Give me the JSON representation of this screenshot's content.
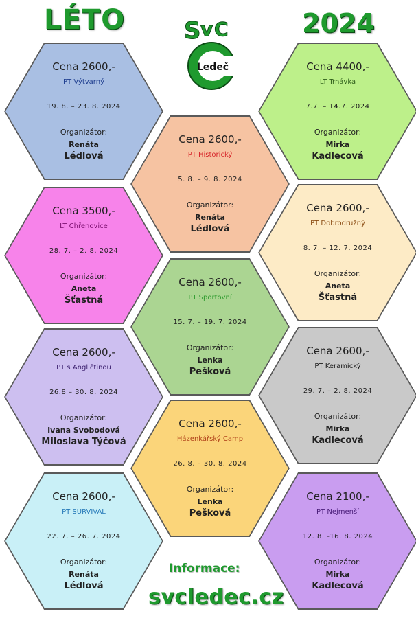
{
  "header": {
    "left": "LÉTO",
    "right": "2024"
  },
  "logo": {
    "letters": "SvC",
    "town": "Ledeč"
  },
  "org_label": "Organizátor:",
  "camps": [
    {
      "price": "Cena 2600,-",
      "name": "PT Výtvarný",
      "dates": "19. 8. – 23. 8. 2024",
      "org1": "Renáta",
      "org2": "Lédlová",
      "fill": "#a9bfe3",
      "nameColor": "#1f3e8f"
    },
    {
      "price": "Cena 4400,-",
      "name": "LT Trnávka",
      "dates": "7.7. – 14.7. 2024",
      "org1": "Mirka",
      "org2": "Kadlecová",
      "fill": "#bdf08a",
      "nameColor": "#2f5e1b"
    },
    {
      "price": "Cena 2600,-",
      "name": "PT Historický",
      "dates": "5. 8. – 9. 8. 2024",
      "org1": "Renáta",
      "org2": "Lédlová",
      "fill": "#f6c3a2",
      "nameColor": "#d7262a"
    },
    {
      "price": "Cena 3500,-",
      "name": "LT Chřenovice",
      "dates": "28. 7. – 2. 8. 2024",
      "org1": "Aneta",
      "org2": "Šťastná",
      "fill": "#f783ea",
      "nameColor": "#7a0e6e"
    },
    {
      "price": "Cena 2600,-",
      "name": "PT Dobrodružný",
      "dates": "8. 7. – 12. 7. 2024",
      "org1": "Aneta",
      "org2": "Šťastná",
      "fill": "#fdebc6",
      "nameColor": "#8a4b12"
    },
    {
      "price": "Cena 2600,-",
      "name": "PT Sportovní",
      "dates": "15. 7. – 19. 7. 2024",
      "org1": "Lenka",
      "org2": "Pešková",
      "fill": "#abd592",
      "nameColor": "#2e9b2e"
    },
    {
      "price": "Cena 2600,-",
      "name": "PT s Angličtinou",
      "dates": "26.8 – 30. 8. 2024",
      "org1": "Ivana Svobodová",
      "org2": "Miloslava Týčová",
      "fill": "#cdbff0",
      "nameColor": "#3d2170"
    },
    {
      "price": "Cena 2600,-",
      "name": "PT Keramický",
      "dates": "29. 7. – 2. 8. 2024",
      "org1": "Mirka",
      "org2": "Kadlecová",
      "fill": "#c9c9c9",
      "nameColor": "#1a1a1a"
    },
    {
      "price": "Cena 2600,-",
      "name": "Házenkářský Camp",
      "dates": "26. 8. – 30. 8. 2024",
      "org1": "Lenka",
      "org2": "Pešková",
      "fill": "#fbd57a",
      "nameColor": "#b1441b"
    },
    {
      "price": "Cena 2600,-",
      "name": "PT SURVIVAL",
      "dates": "22. 7. – 26. 7. 2024",
      "org1": "Renáta",
      "org2": "Lédlová",
      "fill": "#c9f0f7",
      "nameColor": "#2579b8"
    },
    {
      "price": "Cena 2100,-",
      "name": "PT Nejmenší",
      "dates": "12. 8. -16. 8. 2024",
      "org1": "Mirka",
      "org2": "Kadlecová",
      "fill": "#c99df0",
      "nameColor": "#4a1e7a"
    }
  ],
  "footer": {
    "info": "Informace:",
    "web": "svcledec.cz"
  }
}
